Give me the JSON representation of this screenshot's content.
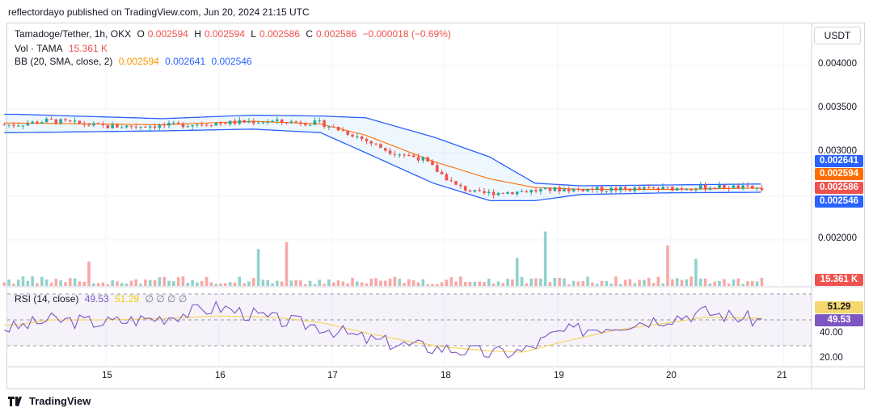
{
  "header": {
    "published": "reflectordayo published on TradingView.com, Jun 20, 2024 21:15 UTC"
  },
  "legend": {
    "symbol": "Tamadoge/Tether, 1h, OKX",
    "o_label": "O",
    "o": "0.002594",
    "h_label": "H",
    "h": "0.002594",
    "l_label": "L",
    "l": "0.002586",
    "c_label": "C",
    "c": "0.002586",
    "change": "−0.000018 (−0.69%)",
    "vol_label": "Vol · TAMA",
    "vol": "15.361 K",
    "bb_label": "BB (20, SMA, close, 2)",
    "bb_basis": "0.002594",
    "bb_upper": "0.002641",
    "bb_lower": "0.002546",
    "rsi_label": "RSI (14, close)",
    "rsi": "49.53",
    "rsi_ma": "51.29",
    "rsi_extra": "∅ ∅ ∅ ∅"
  },
  "currency_button": "USDT",
  "price_axis": [
    "0.004000",
    "0.003500",
    "0.003000",
    "0.002000"
  ],
  "price_tags": {
    "upper": "0.002641",
    "basis": "0.002594",
    "close": "0.002586",
    "lower": "0.002546",
    "volume": "15.361 K"
  },
  "rsi_axis": [
    "40.00",
    "20.00"
  ],
  "rsi_tags": {
    "ma": "51.29",
    "rsi": "49.53"
  },
  "time_axis": [
    "15",
    "16",
    "17",
    "18",
    "19",
    "20",
    "21"
  ],
  "logo": "TradingView",
  "colors": {
    "up": "#26a69a",
    "down": "#ef5350",
    "bb_band": "#2962ff",
    "bb_basis": "#ff6d00",
    "rsi": "#7e57c2",
    "rsi_ma": "#f5d76e"
  },
  "chart_data": {
    "type": "candlestick",
    "title": "Tamadoge/Tether, 1h, OKX",
    "x_ticks": [
      "15",
      "16",
      "17",
      "18",
      "19",
      "20",
      "21"
    ],
    "price_range": [
      0.0017,
      0.0043
    ],
    "bollinger_keypoints": {
      "days": [
        14.2,
        15.5,
        16.3,
        16.9,
        17.3,
        17.9,
        18.4,
        18.8,
        19.2,
        20.0,
        20.8
      ],
      "basis": [
        0.00334,
        0.00332,
        0.00336,
        0.00333,
        0.0032,
        0.0029,
        0.0027,
        0.0026,
        0.00258,
        0.00258,
        0.002594
      ],
      "upper": [
        0.00344,
        0.00339,
        0.00343,
        0.00342,
        0.0034,
        0.00318,
        0.00295,
        0.00265,
        0.00262,
        0.00263,
        0.002641
      ],
      "lower": [
        0.00323,
        0.00325,
        0.00327,
        0.00323,
        0.003,
        0.00265,
        0.00245,
        0.00245,
        0.00252,
        0.00254,
        0.002546
      ]
    },
    "price_keypoints": {
      "days": [
        14.2,
        14.5,
        15.0,
        15.5,
        16.0,
        16.4,
        16.9,
        17.2,
        17.5,
        17.8,
        18.1,
        18.3,
        18.6,
        19.0,
        19.5,
        20.0,
        20.5,
        20.8
      ],
      "close": [
        0.00332,
        0.00337,
        0.0033,
        0.00331,
        0.00334,
        0.00336,
        0.00334,
        0.0032,
        0.00302,
        0.00293,
        0.00262,
        0.00253,
        0.00255,
        0.00258,
        0.00258,
        0.00259,
        0.00261,
        0.002586
      ]
    },
    "volume_range": [
      0,
      100
    ],
    "volume_bars_visible": true,
    "rsi_range": [
      10,
      70
    ],
    "rsi_levels": [
      30,
      50,
      70
    ],
    "rsi_keypoints": {
      "days": [
        14.2,
        14.5,
        15.0,
        15.5,
        16.0,
        16.5,
        16.9,
        17.3,
        17.7,
        18.0,
        18.4,
        18.7,
        19.0,
        19.5,
        20.0,
        20.3,
        20.8
      ],
      "rsi": [
        44,
        50,
        48,
        52,
        60,
        50,
        45,
        35,
        30,
        28,
        24,
        26,
        40,
        46,
        52,
        56,
        49.53
      ],
      "rsi_ma": [
        46,
        50,
        50,
        51,
        53,
        52,
        48,
        40,
        33,
        29,
        26,
        25,
        32,
        42,
        48,
        52,
        51.29
      ]
    }
  }
}
